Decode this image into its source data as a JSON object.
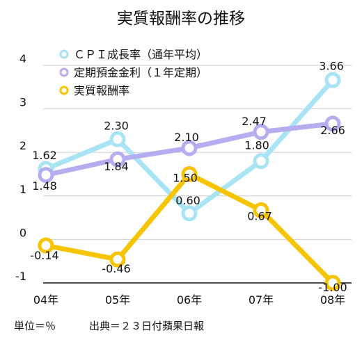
{
  "chart_data": {
    "type": "line",
    "title": "実質報酬率の推移",
    "categories": [
      "04年",
      "05年",
      "06年",
      "07年",
      "08年"
    ],
    "ylim": [
      -1,
      4
    ],
    "yticks": [
      "-1",
      "0",
      "1",
      "2",
      "3",
      "4"
    ],
    "grid": true,
    "legend_position": "top-left",
    "series": [
      {
        "name": "ＣＰＩ成長率（通年平均）",
        "color": "#a9e4f5",
        "values": [
          1.62,
          2.3,
          0.6,
          1.8,
          3.66
        ],
        "labels": [
          "1.62",
          "2.30",
          "0.60",
          "1.80",
          "3.66"
        ]
      },
      {
        "name": "定期預金金利（１年定期）",
        "color": "#b4aef0",
        "values": [
          1.48,
          1.84,
          2.1,
          2.47,
          2.66
        ],
        "labels": [
          "1.48",
          "1.84",
          "2.10",
          "2.47",
          "2.66"
        ]
      },
      {
        "name": "実質報酬率",
        "color": "#f6c400",
        "values": [
          -0.14,
          -0.46,
          1.5,
          0.67,
          -1.0
        ],
        "labels": [
          "-0.14",
          "-0.46",
          "1.50",
          "0.67",
          "-1.00"
        ]
      }
    ]
  },
  "footer": {
    "unit_note": "単位＝％",
    "source_note": "出典＝２３日付蘋果日報"
  }
}
